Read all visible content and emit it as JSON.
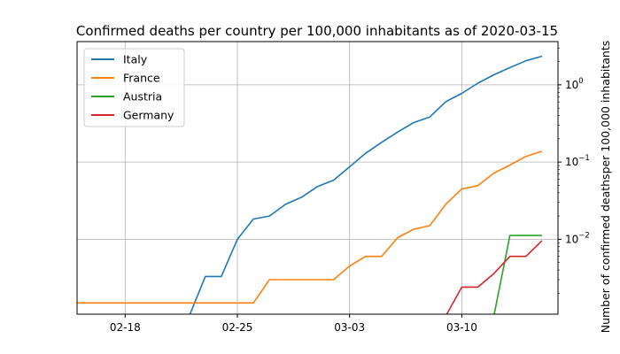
{
  "chart_data": {
    "type": "line",
    "title": "Confirmed deaths per country per 100,000 inhabitants as of 2020-03-15",
    "xlabel": "",
    "ylabel": "Number of confirmed deathsper 100,000 inhabitants",
    "y_scale": "log",
    "y_axis_side": "right",
    "grid": true,
    "legend_position": "top-left",
    "xlim": [
      "2020-02-15",
      "2020-03-16"
    ],
    "ylim_exponent_range": [
      -2.97,
      0.56
    ],
    "floor_value": 0.0015,
    "x_ticks": [
      {
        "date": "2020-02-18",
        "label": "02-18"
      },
      {
        "date": "2020-02-25",
        "label": "02-25"
      },
      {
        "date": "2020-03-03",
        "label": "03-03"
      },
      {
        "date": "2020-03-10",
        "label": "03-10"
      }
    ],
    "y_ticks": [
      {
        "exp": -2,
        "base": "10",
        "sup": "−2"
      },
      {
        "exp": -1,
        "base": "10",
        "sup": "−1"
      },
      {
        "exp": 0,
        "base": "10",
        "sup": "0"
      }
    ],
    "x": [
      "2020-02-15",
      "2020-02-16",
      "2020-02-17",
      "2020-02-18",
      "2020-02-19",
      "2020-02-20",
      "2020-02-21",
      "2020-02-22",
      "2020-02-23",
      "2020-02-24",
      "2020-02-25",
      "2020-02-26",
      "2020-02-27",
      "2020-02-28",
      "2020-02-29",
      "2020-03-01",
      "2020-03-02",
      "2020-03-03",
      "2020-03-04",
      "2020-03-05",
      "2020-03-06",
      "2020-03-07",
      "2020-03-08",
      "2020-03-09",
      "2020-03-10",
      "2020-03-11",
      "2020-03-12",
      "2020-03-13",
      "2020-03-14",
      "2020-03-15"
    ],
    "series": [
      {
        "name": "Italy",
        "color": "#1f77b4",
        "values": [
          0,
          0,
          0,
          0,
          0,
          0,
          0,
          0,
          0.0033,
          0.0033,
          0.01,
          0.0183,
          0.02,
          0.0283,
          0.035,
          0.0483,
          0.0583,
          0.0867,
          0.13,
          0.18,
          0.245,
          0.325,
          0.3833,
          0.605,
          0.775,
          1.05,
          1.35,
          1.67,
          2.05,
          2.35
        ]
      },
      {
        "name": "France",
        "color": "#ff7f0e",
        "values": [
          0.0015,
          0.0015,
          0.0015,
          0.0015,
          0.0015,
          0.0015,
          0.0015,
          0.0015,
          0.0015,
          0.0015,
          0.0015,
          0.0015,
          0.003,
          0.003,
          0.003,
          0.003,
          0.003,
          0.0045,
          0.006,
          0.006,
          0.0105,
          0.0135,
          0.015,
          0.0285,
          0.045,
          0.0495,
          0.072,
          0.0915,
          0.1185,
          0.138
        ]
      },
      {
        "name": "Austria",
        "color": "#2ca02c",
        "values": [
          0,
          0,
          0,
          0,
          0,
          0,
          0,
          0,
          0,
          0,
          0,
          0,
          0,
          0,
          0,
          0,
          0,
          0,
          0,
          0,
          0,
          0,
          0,
          0,
          0,
          0,
          0,
          0.0112,
          0.0112,
          0.0112
        ]
      },
      {
        "name": "Germany",
        "color": "#d62728",
        "values": [
          0,
          0,
          0,
          0,
          0,
          0,
          0,
          0,
          0,
          0,
          0,
          0,
          0,
          0,
          0,
          0,
          0,
          0,
          0,
          0,
          0,
          0,
          0,
          0,
          0.0024,
          0.0024,
          0.0036,
          0.006,
          0.006,
          0.0096
        ]
      }
    ]
  }
}
